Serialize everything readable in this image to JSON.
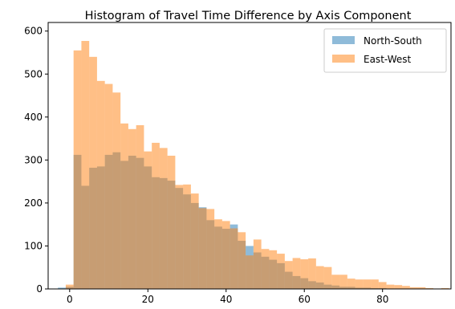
{
  "chart_data": {
    "type": "histogram",
    "title": "Histogram of Travel Time Difference by Axis Component",
    "xlabel": "",
    "ylabel": "",
    "xlim": [
      -5.5,
      97.5
    ],
    "ylim": [
      0,
      620
    ],
    "xticks": [
      0,
      20,
      40,
      60,
      80
    ],
    "yticks": [
      0,
      100,
      200,
      300,
      400,
      500,
      600
    ],
    "grid": false,
    "legend_position": "top-right",
    "bin_start": -3,
    "bin_width": 2,
    "series": [
      {
        "name": "North-South",
        "color": "#1f77b4",
        "alpha": 0.5,
        "values": [
          3,
          5,
          312,
          240,
          282,
          285,
          312,
          318,
          298,
          310,
          305,
          285,
          260,
          258,
          252,
          235,
          220,
          200,
          190,
          160,
          145,
          140,
          150,
          112,
          100,
          85,
          75,
          68,
          60,
          40,
          30,
          25,
          18,
          15,
          10,
          8,
          5,
          5,
          3,
          3,
          2,
          2,
          1,
          1,
          1,
          0,
          0,
          0
        ]
      },
      {
        "name": "East-West",
        "color": "#ff7f0e",
        "alpha": 0.5,
        "values": [
          0,
          10,
          555,
          577,
          540,
          484,
          477,
          457,
          385,
          372,
          381,
          320,
          340,
          328,
          310,
          242,
          243,
          222,
          188,
          186,
          162,
          158,
          141,
          132,
          78,
          115,
          93,
          90,
          82,
          65,
          72,
          69,
          71,
          53,
          51,
          33,
          33,
          24,
          22,
          22,
          22,
          16,
          10,
          9,
          7,
          4,
          4,
          2,
          1,
          2,
          0,
          2,
          1,
          0,
          0,
          0,
          0,
          2,
          2,
          0,
          1,
          2
        ]
      }
    ]
  }
}
